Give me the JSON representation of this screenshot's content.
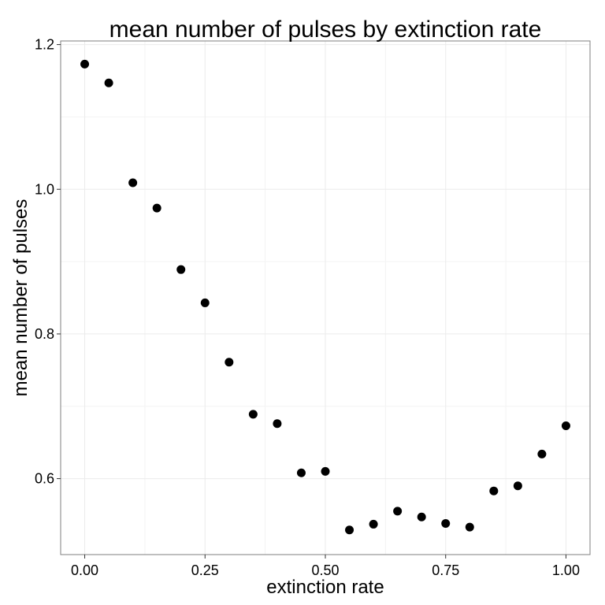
{
  "chart_data": {
    "type": "scatter",
    "title": "mean number of pulses by extinction rate",
    "xlabel": "extinction rate",
    "ylabel": "mean number of pulses",
    "xlim": [
      -0.05,
      1.05
    ],
    "ylim": [
      0.495,
      1.205
    ],
    "x_ticks": [
      0.0,
      0.25,
      0.5,
      0.75,
      1.0
    ],
    "x_tick_labels": [
      "0.00",
      "0.25",
      "0.50",
      "0.75",
      "1.00"
    ],
    "x_minor_ticks": [
      0.125,
      0.375,
      0.625,
      0.875
    ],
    "y_ticks": [
      0.6,
      0.8,
      1.0,
      1.2
    ],
    "y_tick_labels": [
      "0.6",
      "0.8",
      "1.0",
      "1.2"
    ],
    "y_minor_ticks": [
      0.7,
      0.9,
      1.1
    ],
    "grid": true,
    "colors": {
      "point": "#000000",
      "grid": "#ebebeb",
      "panel_border": "#7f7f7f"
    },
    "series": [
      {
        "x": [
          0.0,
          0.05,
          0.1,
          0.15,
          0.2,
          0.25,
          0.3,
          0.35,
          0.4,
          0.45,
          0.5,
          0.55,
          0.6,
          0.65,
          0.7,
          0.75,
          0.8,
          0.85,
          0.9,
          0.95,
          1.0
        ],
        "y": [
          1.173,
          1.147,
          1.009,
          0.974,
          0.889,
          0.843,
          0.761,
          0.689,
          0.676,
          0.608,
          0.61,
          0.529,
          0.537,
          0.555,
          0.547,
          0.538,
          0.533,
          0.583,
          0.59,
          0.634,
          0.673
        ]
      }
    ]
  }
}
